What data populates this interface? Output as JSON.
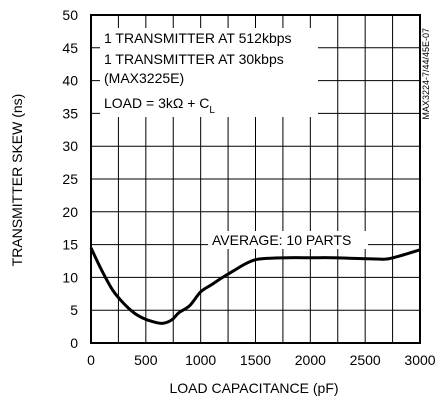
{
  "chart_data": {
    "type": "line",
    "xlabel": "LOAD CAPACITANCE (pF)",
    "ylabel": "TRANSMITTER SKEW (ns)",
    "xlim": [
      0,
      3000
    ],
    "ylim": [
      0,
      50
    ],
    "xticks": [
      0,
      500,
      1000,
      1500,
      2000,
      2500,
      3000
    ],
    "yticks": [
      0,
      5,
      10,
      15,
      20,
      25,
      30,
      35,
      40,
      45,
      50
    ],
    "grid": true,
    "annotations": {
      "line1": "1 TRANSMITTER AT 512kbps",
      "line2": "1 TRANSMITTER AT 30kbps",
      "line3": "(MAX3225E)",
      "load_prefix": "LOAD = 3kΩ + C",
      "load_sub": "L",
      "average": "AVERAGE: 10 PARTS"
    },
    "figure_id": "MAX3224-7/44/45E-07",
    "series": [
      {
        "x": [
          0,
          100,
          200,
          300,
          400,
          500,
          600,
          650,
          700,
          750,
          800,
          900,
          1000,
          1100,
          1200,
          1300,
          1400,
          1500,
          1600,
          1800,
          2000,
          2200,
          2400,
          2600,
          2700,
          2800,
          2900,
          3000
        ],
        "y": [
          14.5,
          11.0,
          8.0,
          6.0,
          4.5,
          3.6,
          3.1,
          3.0,
          3.2,
          3.7,
          4.6,
          5.7,
          7.8,
          8.9,
          10.0,
          11.0,
          12.0,
          12.7,
          12.9,
          13.0,
          13.0,
          13.0,
          12.9,
          12.8,
          12.8,
          13.2,
          13.7,
          14.2
        ]
      }
    ]
  }
}
